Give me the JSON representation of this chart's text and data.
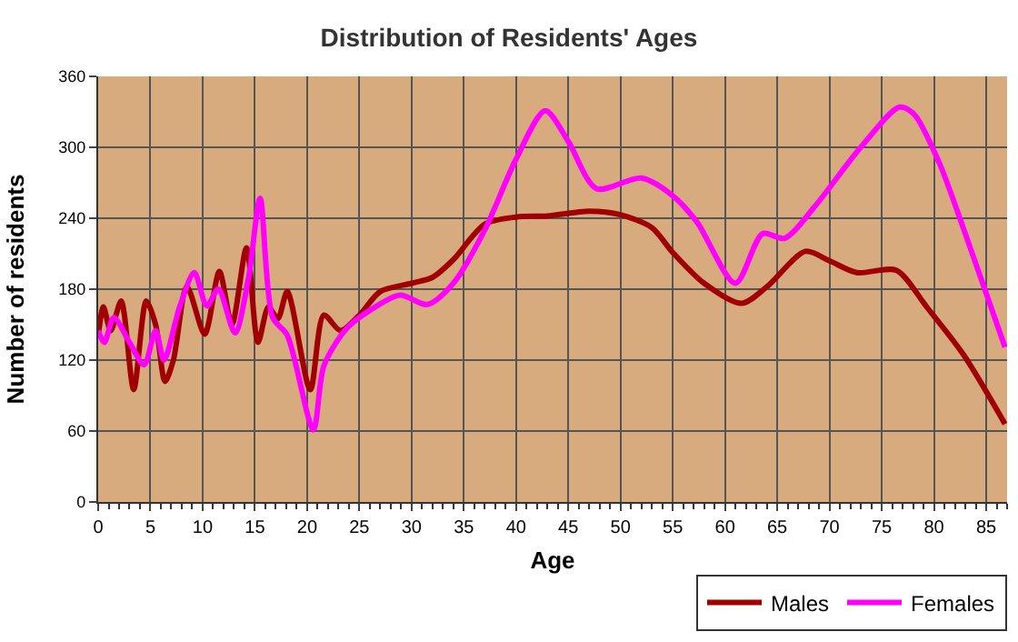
{
  "chart_data": {
    "type": "line",
    "title": "Distribution of Residents' Ages",
    "xlabel": "Age",
    "ylabel": "Number of residents",
    "xlim": [
      0,
      87
    ],
    "xticks": [
      0,
      5,
      10,
      15,
      20,
      25,
      30,
      35,
      40,
      45,
      50,
      55,
      60,
      65,
      70,
      75,
      80,
      85
    ],
    "ylim": [
      0,
      360
    ],
    "yticks": [
      0,
      60,
      120,
      180,
      240,
      300,
      360
    ],
    "grid": true,
    "legend": "bottom right",
    "marker": "none",
    "line_style": "solid",
    "series": [
      {
        "name": "Males",
        "color": "#a00000",
        "x": [
          0,
          0.5,
          1.2,
          2.2,
          3.4,
          4.6,
          5.5,
          6.4,
          7.2,
          8.5,
          10.2,
          11.6,
          12.8,
          14.2,
          15.3,
          16.3,
          17.2,
          18.1,
          20.3,
          21.6,
          23.2,
          25,
          27,
          30,
          32,
          34,
          37,
          40,
          43,
          47,
          50,
          53,
          55,
          58,
          61.6,
          64,
          67.7,
          70,
          72.6,
          76.4,
          79.3,
          82.8,
          86.8
        ],
        "values": [
          140,
          165,
          145,
          170,
          95,
          170,
          150,
          102,
          120,
          182,
          142,
          195,
          150,
          215,
          135,
          165,
          155,
          178,
          95,
          158,
          145,
          158,
          178,
          185,
          190,
          205,
          235,
          241,
          242,
          246,
          243,
          232,
          211,
          185,
          168,
          182,
          212,
          204,
          194,
          196,
          165,
          125,
          66
        ]
      },
      {
        "name": "Females",
        "color": "#ff00ff",
        "x": [
          0,
          0.6,
          1.5,
          3,
          4.4,
          5.5,
          6.3,
          7.8,
          9.2,
          10.4,
          11.5,
          13.1,
          14.4,
          15.5,
          16.7,
          18.1,
          20.6,
          21.6,
          23.7,
          26,
          28.9,
          31.5,
          34,
          37,
          40,
          42.8,
          45,
          47.7,
          52,
          55,
          57.3,
          61,
          63.6,
          65.7,
          68.6,
          72.9,
          76.7,
          78.1,
          80.5,
          82.8,
          86.8
        ],
        "values": [
          145,
          135,
          156,
          135,
          116,
          145,
          120,
          165,
          194,
          166,
          180,
          143,
          190,
          257,
          156,
          141,
          61,
          115,
          146,
          162,
          175,
          167,
          185,
          230,
          290,
          331,
          305,
          265,
          274,
          259,
          237,
          185,
          227,
          223,
          250,
          299,
          334,
          328,
          287,
          232,
          131
        ]
      }
    ]
  }
}
